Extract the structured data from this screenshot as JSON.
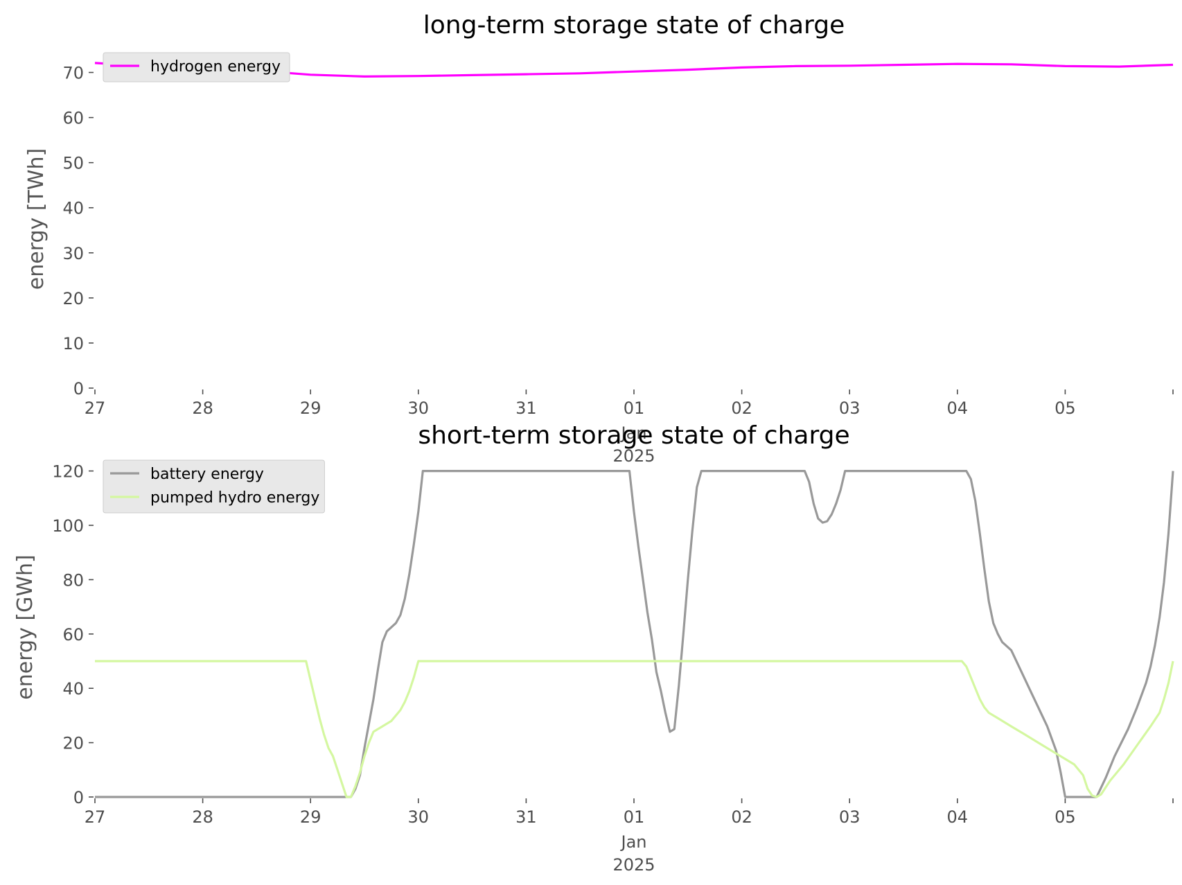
{
  "chart_data": [
    {
      "type": "line",
      "title": "long-term storage state of charge",
      "xlabel": "",
      "ylabel": "energy [TWh]",
      "ylim": [
        0,
        75
      ],
      "xlim": [
        "2024-12-27",
        "2025-01-06"
      ],
      "grid": false,
      "legend_position": "top-left",
      "yticks": [
        0,
        10,
        20,
        30,
        40,
        50,
        60,
        70
      ],
      "xticks": [
        {
          "date": "2024-12-27",
          "label": "27",
          "sub": []
        },
        {
          "date": "2024-12-28",
          "label": "28",
          "sub": []
        },
        {
          "date": "2024-12-29",
          "label": "29",
          "sub": []
        },
        {
          "date": "2024-12-30",
          "label": "30",
          "sub": []
        },
        {
          "date": "2024-12-31",
          "label": "31",
          "sub": []
        },
        {
          "date": "2025-01-01",
          "label": "01",
          "sub": [
            "Jan",
            "2025"
          ]
        },
        {
          "date": "2025-01-02",
          "label": "02",
          "sub": []
        },
        {
          "date": "2025-01-03",
          "label": "03",
          "sub": []
        },
        {
          "date": "2025-01-04",
          "label": "04",
          "sub": []
        },
        {
          "date": "2025-01-05",
          "label": "05",
          "sub": []
        },
        {
          "date": "2025-01-06",
          "label": "",
          "sub": []
        }
      ],
      "series": [
        {
          "name": "hydrogen energy",
          "color": "#ff00ff",
          "points": [
            [
              "2024-12-27 00:00",
              72.1
            ],
            [
              "2024-12-27 12:00",
              71.4
            ],
            [
              "2024-12-28 00:00",
              70.9
            ],
            [
              "2024-12-28 12:00",
              70.4
            ],
            [
              "2024-12-29 00:00",
              69.5
            ],
            [
              "2024-12-29 12:00",
              69.1
            ],
            [
              "2024-12-30 00:00",
              69.2
            ],
            [
              "2024-12-30 12:00",
              69.4
            ],
            [
              "2024-12-31 00:00",
              69.6
            ],
            [
              "2024-12-31 12:00",
              69.8
            ],
            [
              "2025-01-01 00:00",
              70.2
            ],
            [
              "2025-01-01 12:00",
              70.6
            ],
            [
              "2025-01-02 00:00",
              71.1
            ],
            [
              "2025-01-02 12:00",
              71.4
            ],
            [
              "2025-01-03 00:00",
              71.5
            ],
            [
              "2025-01-03 12:00",
              71.7
            ],
            [
              "2025-01-04 00:00",
              71.9
            ],
            [
              "2025-01-04 12:00",
              71.8
            ],
            [
              "2025-01-05 00:00",
              71.4
            ],
            [
              "2025-01-05 12:00",
              71.3
            ],
            [
              "2025-01-06 00:00",
              71.7
            ]
          ]
        }
      ]
    },
    {
      "type": "line",
      "title": "short-term storage state of charge",
      "xlabel": "",
      "ylabel": "energy [GWh]",
      "ylim": [
        0,
        125
      ],
      "xlim": [
        "2024-12-27",
        "2025-01-06"
      ],
      "grid": false,
      "legend_position": "top-left",
      "yticks": [
        0,
        20,
        40,
        60,
        80,
        100,
        120
      ],
      "xticks": [
        {
          "date": "2024-12-27",
          "label": "27",
          "sub": []
        },
        {
          "date": "2024-12-28",
          "label": "28",
          "sub": []
        },
        {
          "date": "2024-12-29",
          "label": "29",
          "sub": []
        },
        {
          "date": "2024-12-30",
          "label": "30",
          "sub": []
        },
        {
          "date": "2024-12-31",
          "label": "31",
          "sub": []
        },
        {
          "date": "2025-01-01",
          "label": "01",
          "sub": [
            "Jan",
            "2025"
          ]
        },
        {
          "date": "2025-01-02",
          "label": "02",
          "sub": []
        },
        {
          "date": "2025-01-03",
          "label": "03",
          "sub": []
        },
        {
          "date": "2025-01-04",
          "label": "04",
          "sub": []
        },
        {
          "date": "2025-01-05",
          "label": "05",
          "sub": []
        },
        {
          "date": "2025-01-06",
          "label": "",
          "sub": []
        }
      ],
      "series": [
        {
          "name": "battery energy",
          "color": "#999999",
          "points": [
            [
              "2024-12-27 00:00",
              0
            ],
            [
              "2024-12-29 09:00",
              0
            ],
            [
              "2024-12-29 10:00",
              3
            ],
            [
              "2024-12-29 11:00",
              8
            ],
            [
              "2024-12-29 12:00",
              18
            ],
            [
              "2024-12-29 14:00",
              36
            ],
            [
              "2024-12-29 15:00",
              47
            ],
            [
              "2024-12-29 16:00",
              57
            ],
            [
              "2024-12-29 17:00",
              61
            ],
            [
              "2024-12-29 19:00",
              64
            ],
            [
              "2024-12-29 20:00",
              67
            ],
            [
              "2024-12-29 21:00",
              73
            ],
            [
              "2024-12-29 22:00",
              82
            ],
            [
              "2024-12-29 23:00",
              93
            ],
            [
              "2024-12-30 00:00",
              105
            ],
            [
              "2024-12-30 01:00",
              120
            ],
            [
              "2024-12-31 23:00",
              120
            ],
            [
              "2025-01-01 00:00",
              105
            ],
            [
              "2025-01-01 01:00",
              92
            ],
            [
              "2025-01-01 02:00",
              80
            ],
            [
              "2025-01-01 03:00",
              68
            ],
            [
              "2025-01-01 04:00",
              58
            ],
            [
              "2025-01-01 05:00",
              46
            ],
            [
              "2025-01-01 06:00",
              39
            ],
            [
              "2025-01-01 07:00",
              31
            ],
            [
              "2025-01-01 08:00",
              24
            ],
            [
              "2025-01-01 09:00",
              25
            ],
            [
              "2025-01-01 10:00",
              41
            ],
            [
              "2025-01-01 11:00",
              60
            ],
            [
              "2025-01-01 12:00",
              80
            ],
            [
              "2025-01-01 13:00",
              98
            ],
            [
              "2025-01-01 14:00",
              114
            ],
            [
              "2025-01-01 15:00",
              120
            ],
            [
              "2025-01-02 14:00",
              120
            ],
            [
              "2025-01-02 15:00",
              116
            ],
            [
              "2025-01-02 16:00",
              108
            ],
            [
              "2025-01-02 17:00",
              102.5
            ],
            [
              "2025-01-02 18:00",
              101
            ],
            [
              "2025-01-02 19:00",
              101.5
            ],
            [
              "2025-01-02 20:00",
              104
            ],
            [
              "2025-01-02 21:00",
              108
            ],
            [
              "2025-01-02 22:00",
              113
            ],
            [
              "2025-01-02 23:00",
              120
            ],
            [
              "2025-01-04 02:00",
              120
            ],
            [
              "2025-01-04 03:00",
              117
            ],
            [
              "2025-01-04 04:00",
              109
            ],
            [
              "2025-01-04 05:00",
              97
            ],
            [
              "2025-01-04 06:00",
              84
            ],
            [
              "2025-01-04 07:00",
              72
            ],
            [
              "2025-01-04 08:00",
              64
            ],
            [
              "2025-01-04 09:00",
              60
            ],
            [
              "2025-01-04 10:00",
              57
            ],
            [
              "2025-01-04 12:00",
              54
            ],
            [
              "2025-01-04 14:00",
              47
            ],
            [
              "2025-01-04 16:00",
              40
            ],
            [
              "2025-01-04 18:00",
              33
            ],
            [
              "2025-01-04 20:00",
              26
            ],
            [
              "2025-01-04 22:00",
              17
            ],
            [
              "2025-01-04 23:00",
              9
            ],
            [
              "2025-01-05 00:00",
              0
            ],
            [
              "2025-01-05 07:00",
              0
            ],
            [
              "2025-01-05 09:00",
              7
            ],
            [
              "2025-01-05 11:00",
              15
            ],
            [
              "2025-01-05 14:00",
              25
            ],
            [
              "2025-01-05 16:00",
              33
            ],
            [
              "2025-01-05 18:00",
              42
            ],
            [
              "2025-01-05 19:00",
              48
            ],
            [
              "2025-01-05 20:00",
              56
            ],
            [
              "2025-01-05 21:00",
              66
            ],
            [
              "2025-01-05 22:00",
              79
            ],
            [
              "2025-01-05 23:00",
              97
            ],
            [
              "2025-01-06 00:00",
              120
            ]
          ]
        },
        {
          "name": "pumped hydro energy",
          "color": "#d4f7a0",
          "points": [
            [
              "2024-12-27 00:00",
              50
            ],
            [
              "2024-12-28 23:00",
              50
            ],
            [
              "2024-12-29 00:00",
              43
            ],
            [
              "2024-12-29 01:00",
              36
            ],
            [
              "2024-12-29 02:00",
              29
            ],
            [
              "2024-12-29 03:00",
              23
            ],
            [
              "2024-12-29 04:00",
              18
            ],
            [
              "2024-12-29 05:00",
              15
            ],
            [
              "2024-12-29 06:00",
              10
            ],
            [
              "2024-12-29 07:00",
              5
            ],
            [
              "2024-12-29 08:00",
              0
            ],
            [
              "2024-12-29 09:00",
              0
            ],
            [
              "2024-12-29 10:00",
              4
            ],
            [
              "2024-12-29 11:00",
              9
            ],
            [
              "2024-12-29 12:00",
              15
            ],
            [
              "2024-12-29 13:00",
              20
            ],
            [
              "2024-12-29 14:00",
              24
            ],
            [
              "2024-12-29 16:00",
              26
            ],
            [
              "2024-12-29 18:00",
              28
            ],
            [
              "2024-12-29 20:00",
              32
            ],
            [
              "2024-12-29 21:00",
              35
            ],
            [
              "2024-12-29 22:00",
              39
            ],
            [
              "2024-12-29 23:00",
              44
            ],
            [
              "2024-12-30 00:00",
              50
            ],
            [
              "2025-01-04 01:00",
              50
            ],
            [
              "2025-01-04 02:00",
              48
            ],
            [
              "2025-01-04 03:00",
              44
            ],
            [
              "2025-01-04 04:00",
              40
            ],
            [
              "2025-01-04 05:00",
              36
            ],
            [
              "2025-01-04 06:00",
              33
            ],
            [
              "2025-01-04 07:00",
              31
            ],
            [
              "2025-01-04 09:00",
              29
            ],
            [
              "2025-01-04 12:00",
              26
            ],
            [
              "2025-01-04 15:00",
              23
            ],
            [
              "2025-01-04 18:00",
              20
            ],
            [
              "2025-01-04 21:00",
              17
            ],
            [
              "2025-01-05 00:00",
              14
            ],
            [
              "2025-01-05 02:00",
              12
            ],
            [
              "2025-01-05 04:00",
              8
            ],
            [
              "2025-01-05 05:00",
              3
            ],
            [
              "2025-01-05 06:00",
              0.5
            ],
            [
              "2025-01-05 07:00",
              0
            ],
            [
              "2025-01-05 08:00",
              1
            ],
            [
              "2025-01-05 10:00",
              6
            ],
            [
              "2025-01-05 13:00",
              12
            ],
            [
              "2025-01-05 16:00",
              19
            ],
            [
              "2025-01-05 19:00",
              26
            ],
            [
              "2025-01-05 21:00",
              31
            ],
            [
              "2025-01-05 22:00",
              36
            ],
            [
              "2025-01-05 23:00",
              42
            ],
            [
              "2025-01-06 00:00",
              50
            ]
          ]
        }
      ]
    }
  ]
}
